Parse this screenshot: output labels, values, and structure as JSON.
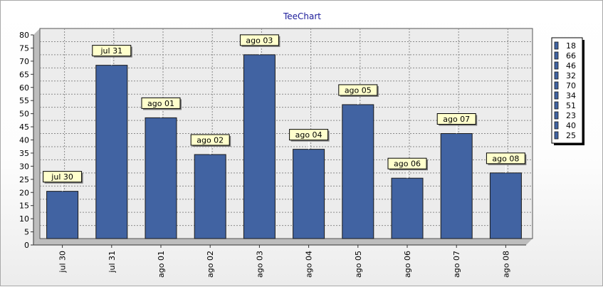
{
  "chart_data": {
    "type": "bar",
    "title": "TeeChart",
    "xlabel": "",
    "ylabel": "",
    "categories": [
      "jul 30",
      "jul 31",
      "ago 01",
      "ago 02",
      "ago 03",
      "ago 04",
      "ago 05",
      "ago 06",
      "ago 07",
      "ago 08"
    ],
    "values": [
      18,
      66,
      46,
      32,
      70,
      34,
      51,
      23,
      40,
      25
    ],
    "ylim": [
      0,
      80
    ],
    "ytick_step": 5,
    "grid": true,
    "legend": {
      "position": "right",
      "entries": [
        "18",
        "66",
        "46",
        "32",
        "70",
        "34",
        "51",
        "23",
        "40",
        "25"
      ]
    },
    "bar_color": "#4163a2",
    "label_background": "#ffffcc"
  }
}
